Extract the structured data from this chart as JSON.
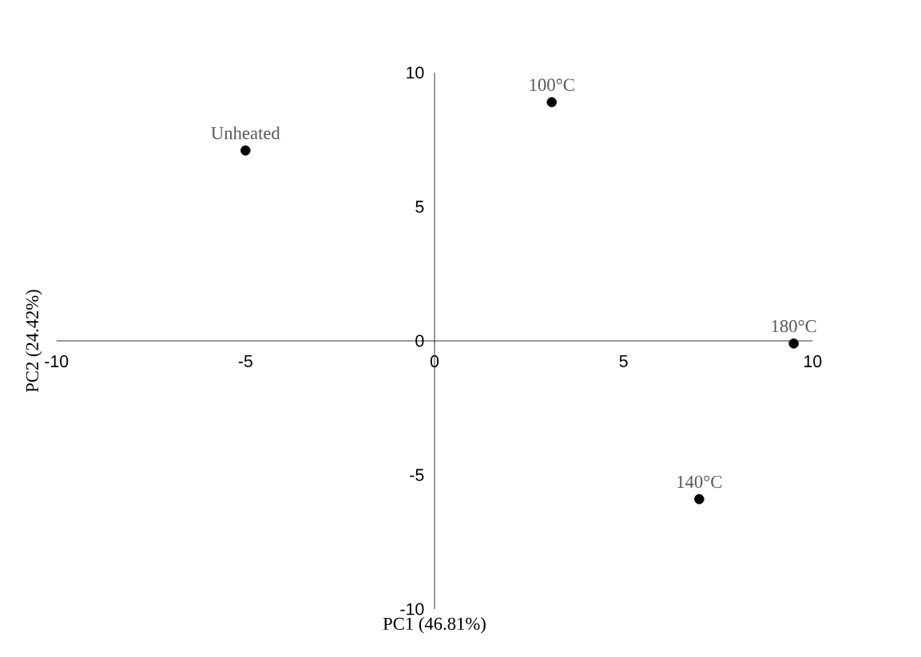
{
  "chart_data": {
    "type": "scatter",
    "xlabel": "PC1 (46.81%)",
    "ylabel": "PC2 (24.42%)",
    "x": [
      -5.0,
      3.1,
      7.0,
      9.5
    ],
    "values": [
      7.1,
      8.9,
      -5.9,
      -0.1
    ],
    "color": "#000000",
    "grid": false,
    "xlim": [
      -10,
      10
    ],
    "ylim": [
      -10,
      10
    ],
    "xticks": [
      -10,
      -5,
      0,
      5,
      10
    ],
    "yticks": [
      -10,
      -5,
      0,
      5,
      10
    ],
    "annotations": [
      {
        "text": "Unheated",
        "x": -5.0,
        "y": 7.1
      },
      {
        "text": "100°C",
        "x": 3.1,
        "y": 8.9
      },
      {
        "text": "140°C",
        "x": 7.0,
        "y": -5.9
      },
      {
        "text": "180°C",
        "x": 9.5,
        "y": -0.1
      }
    ]
  }
}
